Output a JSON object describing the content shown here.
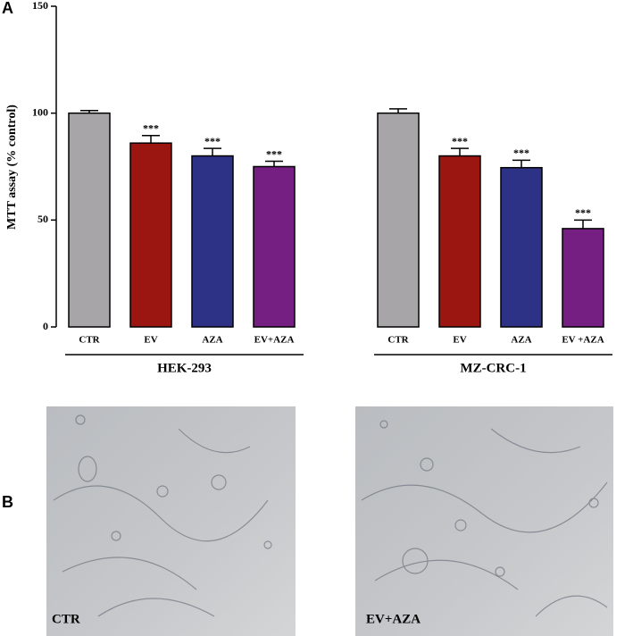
{
  "chart_data": {
    "type": "bar",
    "panel": "A",
    "ylabel": "MTT assay (% control)",
    "ylim": [
      0,
      150
    ],
    "yticks": [
      0,
      50,
      100,
      150
    ],
    "colors": [
      "#a7a5a8",
      "#9b1511",
      "#2e3287",
      "#761f82"
    ],
    "groups": [
      {
        "name": "HEK-293",
        "categories": [
          "CTR",
          "EV",
          "AZA",
          "EV+AZA"
        ],
        "values": [
          100,
          86,
          80,
          75
        ],
        "errors": [
          1.2,
          3.5,
          3.5,
          2.5
        ],
        "significance": [
          null,
          "***",
          "***",
          "***"
        ]
      },
      {
        "name": "MZ-CRC-1",
        "categories": [
          "CTR",
          "EV",
          "AZA",
          "EV +AZA"
        ],
        "values": [
          100,
          80,
          74.5,
          46
        ],
        "errors": [
          2,
          3.5,
          3.5,
          4
        ],
        "significance": [
          null,
          "***",
          "***",
          "***"
        ]
      }
    ]
  },
  "panel_b": {
    "label": "B",
    "images": [
      {
        "caption": "CTR"
      },
      {
        "caption": "EV+AZA"
      }
    ]
  }
}
